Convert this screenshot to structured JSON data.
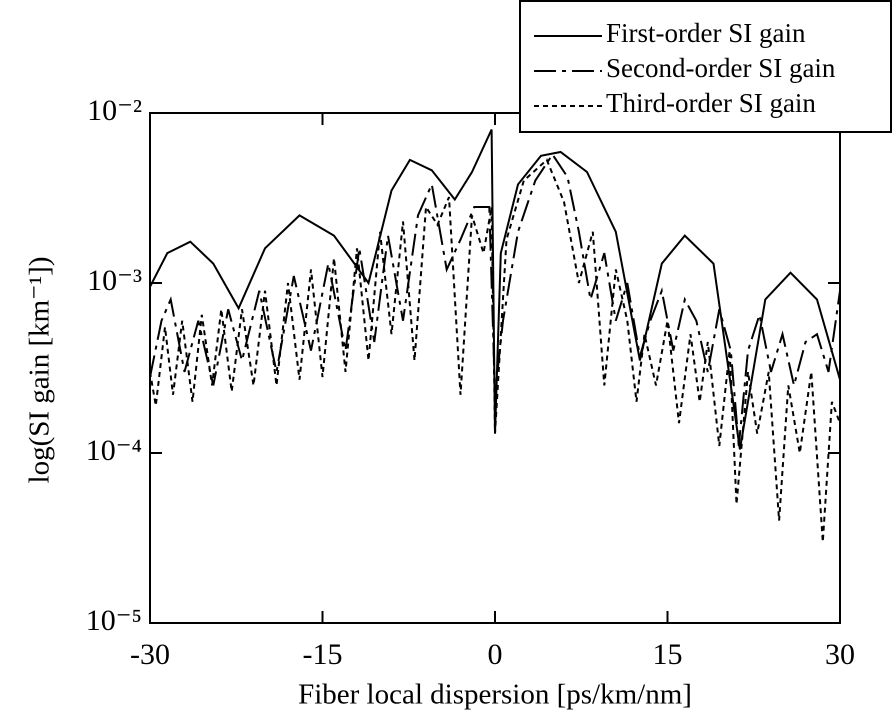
{
  "chart_data": {
    "type": "line",
    "xlabel": "Fiber local dispersion [ps/km/nm]",
    "ylabel": "log(SI gain [km⁻¹])",
    "xlim": [
      -30,
      30
    ],
    "xticks": [
      -30,
      -15,
      0,
      15,
      30
    ],
    "ylim": [
      1e-05,
      0.01
    ],
    "yscale": "log",
    "yticks": [
      {
        "value": 1e-05,
        "label": "10⁻⁵"
      },
      {
        "value": 0.0001,
        "label": "10⁻⁴"
      },
      {
        "value": 0.001,
        "label": "10⁻³"
      },
      {
        "value": 0.01,
        "label": "10⁻²"
      }
    ],
    "legend": "upper right",
    "series": [
      {
        "name": "First-order SI gain",
        "color": "#000000",
        "dash": "solid",
        "x": [
          -30,
          -28.5,
          -26.5,
          -24.5,
          -22.3,
          -20,
          -17,
          -14,
          -11,
          -9,
          -7.4,
          -5.5,
          -3.5,
          -2,
          -0.3,
          0,
          0.5,
          2,
          4,
          5.7,
          8,
          10.5,
          12.6,
          14.5,
          16.5,
          19,
          21.3,
          23.5,
          25.7,
          28,
          30
        ],
        "values": [
          0.00095,
          0.0015,
          0.00175,
          0.0013,
          0.00071,
          0.0016,
          0.0025,
          0.0019,
          0.001,
          0.0035,
          0.0053,
          0.0046,
          0.0031,
          0.0045,
          0.008,
          0.00013,
          0.0015,
          0.0038,
          0.0056,
          0.0059,
          0.0045,
          0.002,
          0.00035,
          0.0013,
          0.0019,
          0.0013,
          0.000105,
          0.0008,
          0.00115,
          0.0008,
          0.00027
        ]
      },
      {
        "name": "Second-order SI gain",
        "color": "#000000",
        "dash": "dash-dot",
        "x": [
          -30,
          -29,
          -28.2,
          -27,
          -25.8,
          -24.5,
          -23.2,
          -22,
          -20.5,
          -19,
          -17.5,
          -16,
          -14.5,
          -13,
          -11.8,
          -10.5,
          -9.3,
          -8,
          -6.7,
          -5.5,
          -4.2,
          -3,
          -1.8,
          -0.5,
          0,
          0.7,
          2,
          3.5,
          5,
          6.3,
          7.3,
          8.3,
          9.5,
          10.5,
          11.5,
          12.6,
          13.5,
          14.5,
          15.5,
          16.5,
          17.5,
          18.5,
          19.5,
          20.5,
          21.2,
          22,
          23,
          24,
          25,
          26,
          27,
          28,
          29,
          30
        ],
        "values": [
          0.00028,
          0.0006,
          0.0008,
          0.0003,
          0.0006,
          0.00025,
          0.0007,
          0.00035,
          0.0009,
          0.0003,
          0.0011,
          0.0004,
          0.0013,
          0.0004,
          0.0016,
          0.00045,
          0.0019,
          0.0006,
          0.0025,
          0.0038,
          0.0012,
          0.0018,
          0.0028,
          0.0028,
          0.00022,
          0.0006,
          0.002,
          0.004,
          0.0057,
          0.0042,
          0.002,
          0.0008,
          0.0015,
          0.0006,
          0.001,
          0.00037,
          0.0006,
          0.0009,
          0.0004,
          0.0008,
          0.0006,
          0.0003,
          0.0007,
          0.0004,
          0.00011,
          0.0004,
          0.00065,
          0.0003,
          0.0005,
          0.00025,
          0.00045,
          0.0005,
          0.0003,
          0.0009
        ]
      },
      {
        "name": "Third-order SI gain",
        "color": "#000000",
        "dash": "dotted",
        "x": [
          -30,
          -29.5,
          -28.7,
          -28,
          -27.2,
          -26.3,
          -25.5,
          -24.6,
          -23.8,
          -22.9,
          -22,
          -21,
          -20,
          -19,
          -18,
          -17,
          -16,
          -15,
          -14,
          -13,
          -12,
          -11,
          -10,
          -9,
          -8,
          -7,
          -6,
          -5,
          -4,
          -3,
          -2,
          -1,
          -0.3,
          0,
          1,
          2.5,
          4.5,
          6,
          7.3,
          8.5,
          9.5,
          10.5,
          11.5,
          12.3,
          13,
          14,
          15,
          16,
          17,
          17.8,
          18.5,
          19.5,
          20.4,
          21,
          22,
          22.8,
          23.8,
          24.7,
          25.5,
          26.5,
          27.5,
          28.5,
          29.3,
          30
        ],
        "values": [
          0.0003,
          0.00019,
          0.00055,
          0.00022,
          0.0006,
          0.0002,
          0.00065,
          0.00025,
          0.0007,
          0.00023,
          0.0007,
          0.00025,
          0.0009,
          0.00025,
          0.001,
          0.00027,
          0.0012,
          0.00028,
          0.0014,
          0.0003,
          0.0016,
          0.00035,
          0.002,
          0.0005,
          0.0023,
          0.00035,
          0.0028,
          0.0022,
          0.0032,
          0.00022,
          0.0025,
          0.0015,
          0.0028,
          0.00013,
          0.0018,
          0.004,
          0.0053,
          0.003,
          0.001,
          0.002,
          0.00025,
          0.0012,
          0.0006,
          0.0002,
          0.0005,
          0.00025,
          0.0006,
          0.00015,
          0.0005,
          0.0002,
          0.00045,
          0.00011,
          0.0004,
          5e-05,
          0.0003,
          0.00013,
          0.0003,
          4e-05,
          0.00025,
          0.0001,
          0.0003,
          3e-05,
          0.0002,
          0.00015
        ]
      }
    ]
  }
}
